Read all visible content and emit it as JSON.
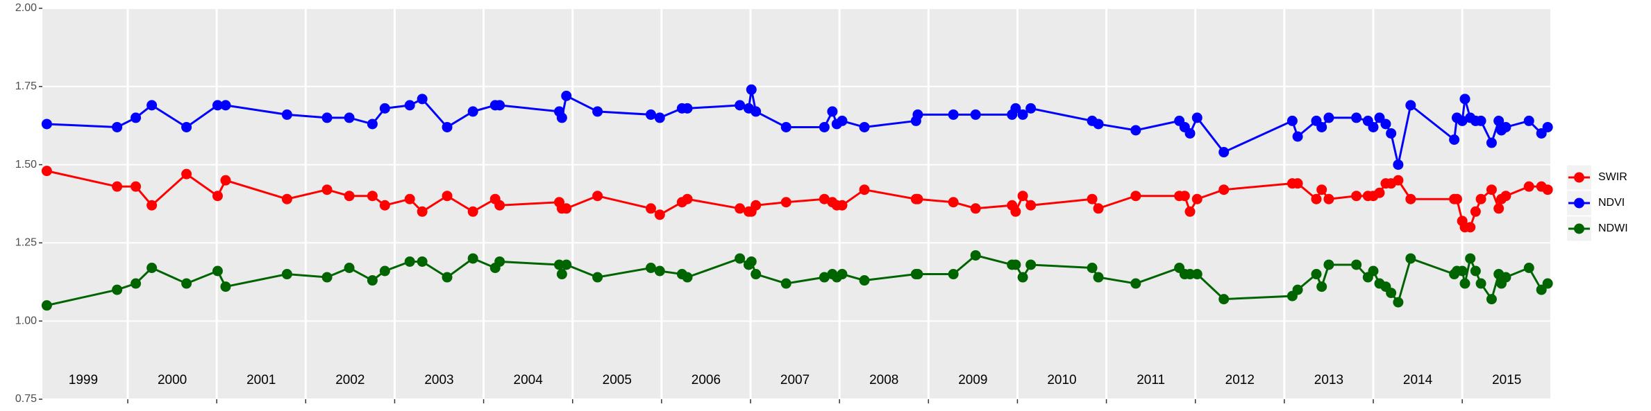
{
  "chart_data": {
    "type": "line",
    "x": [
      1999.09,
      1999.88,
      2000.09,
      2000.27,
      2000.66,
      2001.01,
      2001.1,
      2001.79,
      2002.24,
      2002.49,
      2002.75,
      2002.89,
      2003.17,
      2003.31,
      2003.59,
      2003.88,
      2004.13,
      2004.18,
      2004.85,
      2004.88,
      2004.93,
      2005.28,
      2005.88,
      2005.98,
      2006.23,
      2006.29,
      2006.88,
      2006.98,
      2007.01,
      2007.06,
      2007.4,
      2007.83,
      2007.92,
      2007.97,
      2008.03,
      2008.28,
      2008.86,
      2008.88,
      2009.28,
      2009.53,
      2009.94,
      2009.98,
      2010.06,
      2010.15,
      2010.84,
      2010.91,
      2011.33,
      2011.82,
      2011.88,
      2011.94,
      2012.02,
      2012.32,
      2013.09,
      2013.15,
      2013.36,
      2013.42,
      2013.5,
      2013.81,
      2013.94,
      2014.0,
      2014.07,
      2014.14,
      2014.2,
      2014.28,
      2014.42,
      2014.91,
      2014.94,
      2015.0,
      2015.03,
      2015.09,
      2015.15,
      2015.21,
      2015.33,
      2015.41,
      2015.44,
      2015.49,
      2015.75,
      2015.89,
      2015.96
    ],
    "series": [
      {
        "name": "SWIR",
        "color": "#ff0000",
        "values": [
          1.48,
          1.43,
          1.43,
          1.37,
          1.47,
          1.4,
          1.45,
          1.39,
          1.42,
          1.4,
          1.4,
          1.37,
          1.39,
          1.35,
          1.4,
          1.35,
          1.39,
          1.37,
          1.38,
          1.36,
          1.36,
          1.4,
          1.36,
          1.34,
          1.38,
          1.39,
          1.36,
          1.35,
          1.35,
          1.37,
          1.38,
          1.39,
          1.38,
          1.37,
          1.37,
          1.42,
          1.39,
          1.39,
          1.38,
          1.36,
          1.37,
          1.35,
          1.4,
          1.37,
          1.39,
          1.36,
          1.4,
          1.4,
          1.4,
          1.35,
          1.39,
          1.42,
          1.44,
          1.44,
          1.39,
          1.42,
          1.39,
          1.4,
          1.4,
          1.4,
          1.41,
          1.44,
          1.44,
          1.45,
          1.39,
          1.39,
          1.39,
          1.32,
          1.3,
          1.3,
          1.35,
          1.39,
          1.42,
          1.36,
          1.39,
          1.4,
          1.43,
          1.43,
          1.42
        ]
      },
      {
        "name": "NDVI",
        "color": "#0000ff",
        "values": [
          1.63,
          1.62,
          1.65,
          1.69,
          1.62,
          1.69,
          1.69,
          1.66,
          1.65,
          1.65,
          1.63,
          1.68,
          1.69,
          1.71,
          1.62,
          1.67,
          1.69,
          1.69,
          1.67,
          1.65,
          1.72,
          1.67,
          1.66,
          1.65,
          1.68,
          1.68,
          1.69,
          1.68,
          1.74,
          1.67,
          1.62,
          1.62,
          1.67,
          1.63,
          1.64,
          1.62,
          1.64,
          1.66,
          1.66,
          1.66,
          1.66,
          1.68,
          1.66,
          1.68,
          1.64,
          1.63,
          1.61,
          1.64,
          1.62,
          1.6,
          1.65,
          1.54,
          1.64,
          1.59,
          1.64,
          1.62,
          1.65,
          1.65,
          1.64,
          1.62,
          1.65,
          1.63,
          1.6,
          1.5,
          1.69,
          1.58,
          1.65,
          1.64,
          1.71,
          1.65,
          1.64,
          1.64,
          1.57,
          1.64,
          1.61,
          1.62,
          1.64,
          1.6,
          1.62
        ]
      },
      {
        "name": "NDWI",
        "color": "#006400",
        "values": [
          1.05,
          1.1,
          1.12,
          1.17,
          1.12,
          1.16,
          1.11,
          1.15,
          1.14,
          1.17,
          1.13,
          1.16,
          1.19,
          1.19,
          1.14,
          1.2,
          1.17,
          1.19,
          1.18,
          1.15,
          1.18,
          1.14,
          1.17,
          1.16,
          1.15,
          1.14,
          1.2,
          1.18,
          1.19,
          1.15,
          1.12,
          1.14,
          1.15,
          1.14,
          1.15,
          1.13,
          1.15,
          1.15,
          1.15,
          1.21,
          1.18,
          1.18,
          1.14,
          1.18,
          1.17,
          1.14,
          1.12,
          1.17,
          1.15,
          1.15,
          1.15,
          1.07,
          1.08,
          1.1,
          1.15,
          1.11,
          1.18,
          1.18,
          1.14,
          1.16,
          1.12,
          1.11,
          1.09,
          1.06,
          1.2,
          1.15,
          1.16,
          1.16,
          1.12,
          1.2,
          1.16,
          1.12,
          1.07,
          1.15,
          1.12,
          1.14,
          1.17,
          1.1,
          1.12
        ]
      }
    ],
    "xlim": [
      1999.04,
      2015.99
    ],
    "xticks": [
      2000,
      2001,
      2002,
      2003,
      2004,
      2005,
      2006,
      2007,
      2008,
      2009,
      2010,
      2011,
      2012,
      2013,
      2014,
      2015
    ],
    "ylim": [
      0.75,
      2.0
    ],
    "yticks": [
      {
        "value": 0.75,
        "label": "0.75"
      },
      {
        "value": 1.0,
        "label": "1.00"
      },
      {
        "value": 1.25,
        "label": "1.25"
      },
      {
        "value": 1.5,
        "label": "1.50"
      },
      {
        "value": 1.75,
        "label": "1.75"
      },
      {
        "value": 2.0,
        "label": "2.00"
      }
    ],
    "grid": true,
    "legend": "right",
    "annotations": [
      {
        "text": "1999",
        "x": 1999.5,
        "y": 0.81
      },
      {
        "text": "2000",
        "x": 2000.5,
        "y": 0.81
      },
      {
        "text": "2001",
        "x": 2001.5,
        "y": 0.81
      },
      {
        "text": "2002",
        "x": 2002.5,
        "y": 0.81
      },
      {
        "text": "2003",
        "x": 2003.5,
        "y": 0.81
      },
      {
        "text": "2004",
        "x": 2004.5,
        "y": 0.81
      },
      {
        "text": "2005",
        "x": 2005.5,
        "y": 0.81
      },
      {
        "text": "2006",
        "x": 2006.5,
        "y": 0.81
      },
      {
        "text": "2007",
        "x": 2007.5,
        "y": 0.81
      },
      {
        "text": "2008",
        "x": 2008.5,
        "y": 0.81
      },
      {
        "text": "2009",
        "x": 2009.5,
        "y": 0.81
      },
      {
        "text": "2010",
        "x": 2010.5,
        "y": 0.81
      },
      {
        "text": "2011",
        "x": 2011.5,
        "y": 0.81
      },
      {
        "text": "2012",
        "x": 2012.5,
        "y": 0.81
      },
      {
        "text": "2013",
        "x": 2013.5,
        "y": 0.81
      },
      {
        "text": "2014",
        "x": 2014.5,
        "y": 0.81
      },
      {
        "text": "2015",
        "x": 2015.5,
        "y": 0.81
      }
    ]
  }
}
